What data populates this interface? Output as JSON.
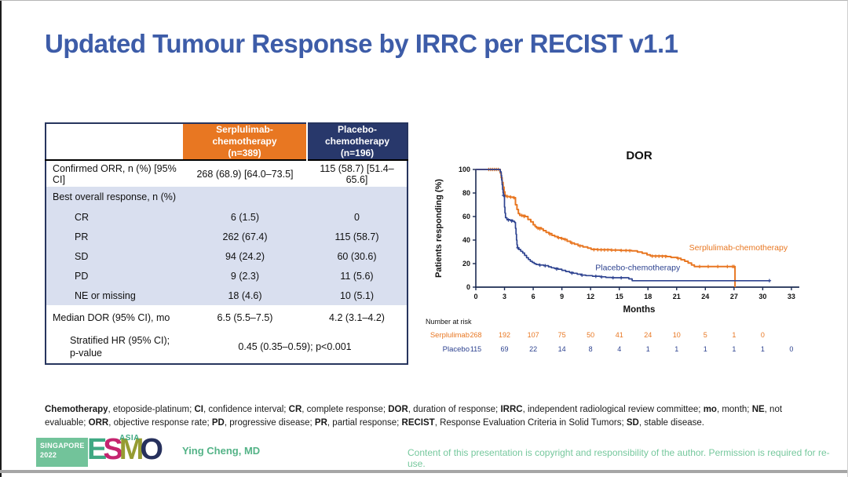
{
  "slide": {
    "title": "Updated Tumour Response by IRRC per RECIST v1.1"
  },
  "colors": {
    "title_blue": "#3d5ca8",
    "serplulimab_orange": "#e87722",
    "placebo_navy": "#28386b",
    "curve_blue": "#2e4390",
    "row_light_blue": "#d9dfef",
    "footer_green": "#54b387"
  },
  "table": {
    "header": {
      "col2_line1": "Serplulimab-chemotherapy",
      "col2_line2": "(n=389)",
      "col3_line1": "Placebo-chemotherapy",
      "col3_line2": "(n=196)"
    },
    "rows": [
      {
        "label": "Confirmed ORR, n (%) [95% CI]",
        "serplulimab": "268 (68.9) [64.0–73.5]",
        "placebo": "115 (58.7) [51.4–65.6]"
      },
      {
        "label": "Best overall response, n (%)"
      },
      {
        "label": "CR",
        "serplulimab": "6 (1.5)",
        "placebo": "0"
      },
      {
        "label": "PR",
        "serplulimab": "262 (67.4)",
        "placebo": "115 (58.7)"
      },
      {
        "label": "SD",
        "serplulimab": "94 (24.2)",
        "placebo": "60 (30.6)"
      },
      {
        "label": "PD",
        "serplulimab": "9 (2.3)",
        "placebo": "11 (5.6)"
      },
      {
        "label": "NE or missing",
        "serplulimab": "18 (4.6)",
        "placebo": "10 (5.1)"
      },
      {
        "label": "Median DOR (95% CI), mo",
        "serplulimab": "6.5 (5.5–7.5)",
        "placebo": "4.2 (3.1–4.2)"
      },
      {
        "label_line1": "Stratified HR (95% CI);",
        "label_line2": "p-value",
        "merged": "0.45 (0.35–0.59); p<0.001"
      }
    ]
  },
  "chart_data": {
    "type": "line",
    "subtype": "kaplan-meier-step",
    "title": "DOR",
    "xlabel": "Months",
    "ylabel": "Patients responding (%)",
    "xlim": [
      0,
      34.5
    ],
    "ylim": [
      0,
      100
    ],
    "xticks": [
      0,
      3,
      6,
      9,
      12,
      15,
      18,
      21,
      24,
      27,
      30,
      33
    ],
    "yticks": [
      0,
      20,
      40,
      60,
      80,
      100
    ],
    "legend_position": "on-curve-labels",
    "grid": false,
    "series": [
      {
        "name": "Serplulimab-chemotherapy",
        "color": "#e87722",
        "label_x": 22.3,
        "label_y": 31.5,
        "steps": [
          [
            0,
            100
          ],
          [
            2.55,
            97
          ],
          [
            2.65,
            93
          ],
          [
            2.75,
            89
          ],
          [
            2.85,
            85
          ],
          [
            2.95,
            81
          ],
          [
            3.05,
            78
          ],
          [
            3.15,
            77
          ],
          [
            3.55,
            76.5
          ],
          [
            3.9,
            76
          ],
          [
            4.15,
            70
          ],
          [
            4.3,
            66
          ],
          [
            4.45,
            62.5
          ],
          [
            4.6,
            61
          ],
          [
            5.15,
            60
          ],
          [
            5.45,
            57.5
          ],
          [
            5.75,
            55.5
          ],
          [
            6.0,
            53
          ],
          [
            6.2,
            51.5
          ],
          [
            6.35,
            50.5
          ],
          [
            6.85,
            49.5
          ],
          [
            7.05,
            48
          ],
          [
            7.35,
            46.5
          ],
          [
            7.65,
            45.5
          ],
          [
            7.95,
            44
          ],
          [
            8.25,
            43
          ],
          [
            8.55,
            42
          ],
          [
            8.9,
            41.3
          ],
          [
            9.2,
            40.5
          ],
          [
            9.55,
            39
          ],
          [
            9.9,
            37.5
          ],
          [
            10.3,
            36.5
          ],
          [
            10.7,
            35.2
          ],
          [
            11.2,
            34.2
          ],
          [
            11.7,
            33.2
          ],
          [
            12.05,
            32.2
          ],
          [
            12.7,
            31.8
          ],
          [
            14.1,
            31.5
          ],
          [
            15.1,
            31.2
          ],
          [
            16.3,
            30.8
          ],
          [
            16.9,
            29.8
          ],
          [
            17.4,
            28.8
          ],
          [
            17.9,
            27.5
          ],
          [
            18.25,
            26.5
          ],
          [
            19.95,
            26
          ],
          [
            20.4,
            25.3
          ],
          [
            21.05,
            24.5
          ],
          [
            21.45,
            23.3
          ],
          [
            21.85,
            22
          ],
          [
            22.2,
            20.5
          ],
          [
            22.55,
            18.8
          ],
          [
            22.85,
            17.5
          ],
          [
            27.1,
            0
          ]
        ],
        "censors": [
          [
            1.35,
            100
          ],
          [
            1.55,
            100
          ],
          [
            1.75,
            100
          ],
          [
            1.95,
            100
          ],
          [
            2.15,
            100
          ],
          [
            2.35,
            100
          ],
          [
            3.3,
            77
          ],
          [
            3.65,
            76.5
          ],
          [
            4.0,
            76
          ],
          [
            4.8,
            61
          ],
          [
            5.05,
            60
          ],
          [
            6.5,
            50
          ],
          [
            6.7,
            49.5
          ],
          [
            7.75,
            45
          ],
          [
            8.65,
            42
          ],
          [
            9.0,
            41.3
          ],
          [
            9.35,
            40.5
          ],
          [
            10.05,
            37.5
          ],
          [
            10.9,
            35
          ],
          [
            12.35,
            31.8
          ],
          [
            12.75,
            31.8
          ],
          [
            13.1,
            31.7
          ],
          [
            13.45,
            31.6
          ],
          [
            13.8,
            31.6
          ],
          [
            14.2,
            31.5
          ],
          [
            14.6,
            31.4
          ],
          [
            15.2,
            31.2
          ],
          [
            15.7,
            31.1
          ],
          [
            16.1,
            30.9
          ],
          [
            18.45,
            26.3
          ],
          [
            18.8,
            26.2
          ],
          [
            19.15,
            26.2
          ],
          [
            19.5,
            26.1
          ],
          [
            19.85,
            26
          ],
          [
            21.15,
            24.4
          ],
          [
            23.4,
            17.5
          ],
          [
            24.3,
            17.5
          ],
          [
            25.3,
            17.5
          ],
          [
            26.3,
            17.5
          ],
          [
            26.85,
            17.5
          ],
          [
            27.0,
            17.5
          ]
        ]
      },
      {
        "name": "Placebo-chemotherapy",
        "color": "#2e4390",
        "label_x": 12.5,
        "label_y": 14.5,
        "steps": [
          [
            0,
            100
          ],
          [
            2.55,
            98
          ],
          [
            2.65,
            95
          ],
          [
            2.7,
            91
          ],
          [
            2.75,
            87
          ],
          [
            2.8,
            83
          ],
          [
            2.85,
            80
          ],
          [
            2.9,
            78
          ],
          [
            3.0,
            68
          ],
          [
            3.05,
            63
          ],
          [
            3.1,
            59
          ],
          [
            3.25,
            57.5
          ],
          [
            3.55,
            57
          ],
          [
            3.85,
            56
          ],
          [
            4.05,
            55
          ],
          [
            4.15,
            50
          ],
          [
            4.2,
            45
          ],
          [
            4.25,
            40
          ],
          [
            4.3,
            36
          ],
          [
            4.35,
            33.5
          ],
          [
            4.5,
            32
          ],
          [
            4.7,
            30.5
          ],
          [
            4.9,
            29
          ],
          [
            5.1,
            27
          ],
          [
            5.3,
            25
          ],
          [
            5.5,
            23.5
          ],
          [
            5.7,
            22
          ],
          [
            5.9,
            21
          ],
          [
            6.1,
            20
          ],
          [
            6.3,
            19.3
          ],
          [
            6.6,
            18.8
          ],
          [
            7.1,
            18.3
          ],
          [
            7.6,
            17.3
          ],
          [
            7.9,
            16.5
          ],
          [
            8.2,
            16
          ],
          [
            8.6,
            15.3
          ],
          [
            9.0,
            14.3
          ],
          [
            9.4,
            13.3
          ],
          [
            9.8,
            12.5
          ],
          [
            10.2,
            11.8
          ],
          [
            10.6,
            11
          ],
          [
            11.0,
            10.3
          ],
          [
            11.5,
            9.8
          ],
          [
            12.2,
            9.3
          ],
          [
            13.0,
            8.8
          ],
          [
            13.6,
            8.3
          ],
          [
            14.2,
            8
          ],
          [
            16.0,
            7
          ],
          [
            16.35,
            5.5
          ],
          [
            30.7,
            5.5
          ]
        ],
        "censors": [
          [
            2.9,
            78
          ],
          [
            3.4,
            57
          ],
          [
            3.75,
            56.2
          ],
          [
            4.4,
            33.4
          ],
          [
            6.7,
            18.7
          ],
          [
            7.25,
            18.2
          ],
          [
            8.45,
            15.4
          ],
          [
            10.05,
            11.9
          ],
          [
            11.1,
            10.2
          ],
          [
            12.55,
            9.2
          ],
          [
            13.15,
            8.7
          ],
          [
            14.35,
            8
          ],
          [
            15.2,
            7.9
          ],
          [
            30.7,
            5.5
          ]
        ]
      }
    ],
    "number_at_risk": {
      "label": "Number at risk",
      "rows": [
        {
          "name": "Serplulimab",
          "color": "#e87722",
          "values": [
            268,
            192,
            107,
            75,
            50,
            41,
            24,
            10,
            5,
            1,
            0
          ]
        },
        {
          "name": "Placebo",
          "color": "#2e4390",
          "values": [
            115,
            69,
            22,
            14,
            8,
            4,
            1,
            1,
            1,
            1,
            1,
            0
          ]
        }
      ]
    }
  },
  "footnote": {
    "segments": [
      {
        "b": "Chemotherapy"
      },
      {
        "t": ", etoposide-platinum; "
      },
      {
        "b": "CI"
      },
      {
        "t": ", confidence interval; "
      },
      {
        "b": "CR"
      },
      {
        "t": ", complete response; "
      },
      {
        "b": "DOR"
      },
      {
        "t": ", duration of response; "
      },
      {
        "b": "IRRC"
      },
      {
        "t": ", independent radiological review committee; "
      },
      {
        "b": "mo"
      },
      {
        "t": ", month; "
      },
      {
        "b": "NE"
      },
      {
        "t": ", not evaluable; "
      },
      {
        "b": "ORR"
      },
      {
        "t": ", objective response rate; "
      },
      {
        "b": "PD"
      },
      {
        "t": ", progressive disease; "
      },
      {
        "b": "PR"
      },
      {
        "t": ", partial response; "
      },
      {
        "b": "RECIST"
      },
      {
        "t": ", Response Evaluation Criteria in Solid Tumors; "
      },
      {
        "b": "SD"
      },
      {
        "t": ", stable disease."
      }
    ]
  },
  "footer": {
    "singapore_line1": "SINGAPORE",
    "singapore_line2": "2022",
    "esmo_letters": [
      "E",
      "S",
      "M",
      "O"
    ],
    "asia": "ASIA",
    "author": "Ying Cheng, MD",
    "copyright": "Content of this presentation is copyright and responsibility of the author. Permission is required for re-use."
  }
}
